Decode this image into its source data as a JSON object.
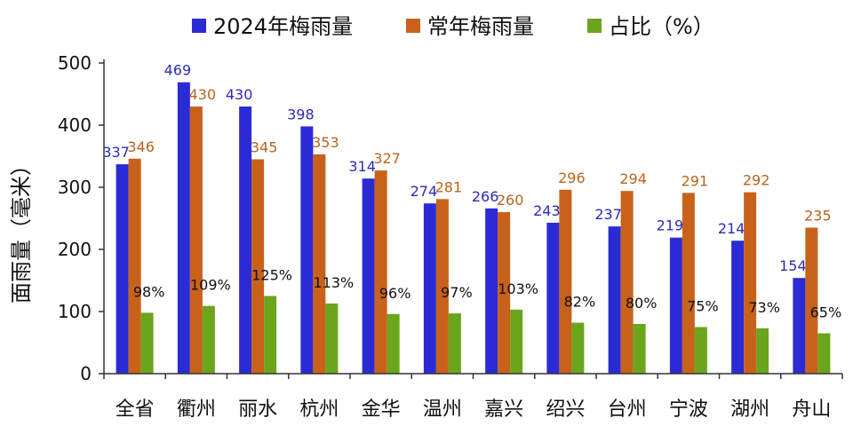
{
  "chart_data": {
    "type": "bar",
    "ylabel": "面雨量（毫米）",
    "ylim": [
      0,
      500
    ],
    "yticks": [
      0,
      100,
      200,
      300,
      400,
      500
    ],
    "legend_position": "top",
    "categories": [
      "全省",
      "衢州",
      "丽水",
      "杭州",
      "金华",
      "温州",
      "嘉兴",
      "绍兴",
      "台州",
      "宁波",
      "湖州",
      "舟山"
    ],
    "series": [
      {
        "name": "2024年梅雨量",
        "color": "#2b2bd6",
        "label_color": "#2b2bb8",
        "values": [
          337,
          469,
          430,
          398,
          314,
          274,
          266,
          243,
          237,
          219,
          214,
          154
        ],
        "labels": [
          "337",
          "469",
          "430",
          "398",
          "314",
          "274",
          "266",
          "243",
          "237",
          "219",
          "214",
          "154"
        ]
      },
      {
        "name": "常年梅雨量",
        "color": "#c8621a",
        "label_color": "#b8641e",
        "values": [
          346,
          430,
          345,
          353,
          327,
          281,
          260,
          296,
          294,
          291,
          292,
          235
        ],
        "labels": [
          "346",
          "430",
          "345",
          "353",
          "327",
          "281",
          "260",
          "296",
          "294",
          "291",
          "292",
          "235"
        ]
      },
      {
        "name": "占比（%）",
        "color": "#6aa51c",
        "label_color": "#111111",
        "values": [
          98,
          109,
          125,
          113,
          96,
          97,
          103,
          82,
          80,
          75,
          73,
          65
        ],
        "labels": [
          "98%",
          "109%",
          "125%",
          "113%",
          "96%",
          "97%",
          "103%",
          "82%",
          "80%",
          "75%",
          "73%",
          "65%"
        ]
      }
    ]
  }
}
